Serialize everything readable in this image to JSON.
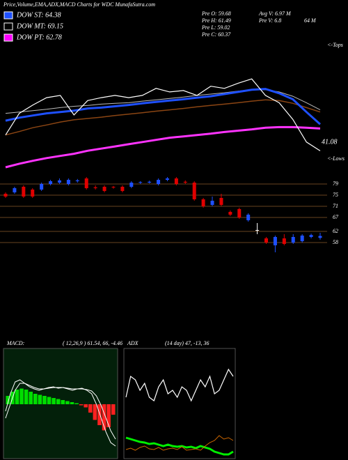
{
  "header": {
    "title": "Price,Volume,EMA,ADX,MACD Charts for WDC MunafaSutra.com"
  },
  "indicators": [
    {
      "label": "DOW ST: 64.38",
      "color": "#1e50ff"
    },
    {
      "label": "DOW MT: 69.15",
      "color": "#000000"
    },
    {
      "label": "DOW PT: 62.78",
      "color": "#ff00ff"
    }
  ],
  "stats": [
    "Pre O: 59.68",
    "Pre H: 61.49",
    "Pre L: 59.02",
    "Pre C: 60.37",
    "Avg V: 6.97 M",
    "Pre V: 6.8",
    "64 M"
  ],
  "chart_data": [
    {
      "type": "line",
      "ylim": [
        35,
        80
      ],
      "annotations": [
        "<-Tops",
        "<-Lows",
        "41.08"
      ],
      "series": [
        {
          "color": "#8b4513",
          "width": 1.5,
          "values": [
            46.9,
            48.2,
            49.6,
            50.6,
            51.7,
            52.5,
            53.0,
            53.5,
            54.1,
            54.6,
            55.1,
            55.7,
            56.2,
            56.7,
            57.3,
            57.8,
            58.3,
            58.8,
            59.4,
            59.9,
            59.6,
            58.6,
            57.0,
            55.4
          ]
        },
        {
          "color": "#ff33ff",
          "width": 3,
          "values": [
            35.0,
            36.3,
            37.4,
            38.4,
            39.2,
            40.0,
            41.1,
            41.9,
            42.7,
            43.5,
            44.3,
            45.1,
            45.9,
            46.4,
            46.9,
            47.4,
            48.0,
            48.5,
            49.0,
            49.6,
            49.8,
            49.8,
            49.6,
            49.3
          ]
        },
        {
          "color": "#bbbbbb",
          "width": 1,
          "values": [
            54.9,
            55.4,
            55.9,
            56.4,
            57.0,
            57.5,
            57.8,
            58.3,
            58.6,
            58.8,
            59.4,
            59.9,
            60.4,
            60.9,
            61.5,
            62.0,
            62.5,
            63.1,
            63.6,
            63.6,
            62.8,
            61.2,
            58.8,
            56.2
          ]
        },
        {
          "color": "#1e50ff",
          "width": 3,
          "values": [
            52.2,
            53.3,
            54.1,
            54.9,
            55.4,
            55.9,
            56.7,
            57.0,
            57.5,
            58.0,
            58.6,
            59.1,
            59.6,
            60.1,
            60.7,
            61.2,
            62.0,
            62.8,
            63.6,
            63.9,
            62.3,
            60.1,
            55.4,
            50.9
          ]
        },
        {
          "color": "#ffffff",
          "width": 1.2,
          "values": [
            46.9,
            54.9,
            58.0,
            60.7,
            61.5,
            54.3,
            59.6,
            60.7,
            61.5,
            60.7,
            61.5,
            64.1,
            62.8,
            63.3,
            61.5,
            64.9,
            64.1,
            66.0,
            67.6,
            61.5,
            58.8,
            52.7,
            44.3,
            41.08
          ]
        }
      ]
    },
    {
      "type": "candlestick",
      "ylim": [
        52.5,
        82.5
      ],
      "yticks": [
        79,
        75,
        71,
        67,
        62,
        58
      ],
      "grid": true,
      "grid_color": "#8b5a2b",
      "up_color": "#1e50ff",
      "down_color": "#e00000",
      "flat_color": "#ffffff",
      "open": [
        75.5,
        76,
        78,
        77,
        77,
        79,
        79.5,
        79,
        80,
        81,
        77.8,
        78,
        78,
        78,
        78,
        79.5,
        79.5,
        79,
        80.5,
        81,
        79.8,
        79.5,
        73.5,
        71.5,
        74,
        69,
        70,
        66,
        62.5,
        59.5,
        57,
        59.5,
        58,
        58.5,
        60,
        59.68
      ],
      "high": [
        76,
        78,
        78.5,
        77.5,
        79.5,
        80.5,
        81,
        81,
        80.8,
        81.5,
        78.5,
        78.5,
        78.3,
        78.5,
        80,
        80,
        80.2,
        81,
        81.5,
        81.5,
        80.3,
        80,
        74,
        74.5,
        75.5,
        69.5,
        70.5,
        68.5,
        65,
        60,
        60.5,
        61,
        61,
        61,
        61.2,
        61.49
      ],
      "low": [
        74,
        75.5,
        74,
        74,
        76.5,
        78.5,
        79,
        78.5,
        79.5,
        77,
        77,
        76,
        77.3,
        76,
        77.5,
        79,
        79.2,
        78.5,
        80,
        78.5,
        79,
        73,
        70.5,
        71,
        71,
        67.5,
        66.5,
        65.5,
        61,
        57.5,
        54.5,
        57,
        57.5,
        58,
        59.5,
        59.02
      ],
      "close": [
        74.5,
        77.5,
        74.5,
        74.5,
        79,
        80,
        80.3,
        80.5,
        80.3,
        77.5,
        77.5,
        76.5,
        77.8,
        76.5,
        79.5,
        79.7,
        79.8,
        80.5,
        81,
        79,
        79.5,
        73.5,
        71,
        73,
        71.5,
        68,
        67,
        68,
        62.5,
        58,
        60,
        57.5,
        60,
        60.5,
        60.7,
        60.37
      ]
    },
    {
      "type": "line",
      "title": "MACD:",
      "subtitle": "( 12,26,9 ) 61.54, 66, -4.46",
      "background": "#03200a",
      "ylim": [
        0,
        100
      ],
      "histogram": {
        "pos_color": "#00dd00",
        "neg_color": "#ff2020",
        "y2lim": [
          -50,
          50
        ],
        "values": [
          8,
          12,
          14,
          15,
          14,
          12,
          10,
          9,
          8,
          7,
          6,
          5,
          4,
          3,
          2,
          1,
          -1,
          -3,
          -8,
          -15,
          -20,
          -25,
          -22,
          -10
        ]
      },
      "series": [
        {
          "color": "#ffffff",
          "width": 1,
          "values": [
            36.7,
            50,
            63.3,
            70,
            70,
            68,
            66,
            64.7,
            64.7,
            65.3,
            66,
            66,
            66,
            65.3,
            64.7,
            64.7,
            64.7,
            64,
            62.7,
            58,
            48.7,
            36.7,
            24.7,
            16.7
          ]
        },
        {
          "color": "#ffffff",
          "width": 1,
          "values": [
            43.3,
            60,
            71.3,
            73.3,
            70,
            66.7,
            64.7,
            63.3,
            64.7,
            66,
            66.7,
            65.3,
            66,
            64.7,
            63.3,
            64.7,
            65.3,
            63.3,
            60,
            50,
            36.7,
            23.3,
            13.3,
            10
          ]
        }
      ]
    },
    {
      "type": "line",
      "title": "ADX",
      "subtitle": "(14 day) 47, -13, 36",
      "background": "#000000",
      "ylim": [
        0,
        100
      ],
      "series": [
        {
          "color": "#ffffff",
          "width": 1.2,
          "values": [
            56.7,
            76.7,
            73.3,
            63.3,
            70,
            56.7,
            53.3,
            66.7,
            73.3,
            60,
            63.3,
            56.7,
            66.7,
            63.3,
            53.3,
            63.3,
            73.3,
            66.7,
            76.7,
            60,
            63.3,
            73.3,
            83.3,
            76.7
          ]
        },
        {
          "color": "#00ee00",
          "width": 3,
          "values": [
            18,
            16.7,
            15.3,
            14,
            13.3,
            12,
            12.7,
            11.3,
            10,
            11.3,
            10,
            9.3,
            10,
            8.7,
            9.3,
            8,
            10,
            8.7,
            7.3,
            4.7,
            3.3,
            2,
            2,
            4.7
          ]
        },
        {
          "color": "#cc6600",
          "width": 1,
          "values": [
            6.7,
            8,
            6,
            8.7,
            10,
            7.3,
            6.7,
            8.7,
            6,
            7.3,
            8,
            6.7,
            9.3,
            6,
            6.7,
            7.3,
            6,
            10,
            13.3,
            15.3,
            20,
            16.7,
            18,
            15.3
          ]
        }
      ]
    }
  ]
}
